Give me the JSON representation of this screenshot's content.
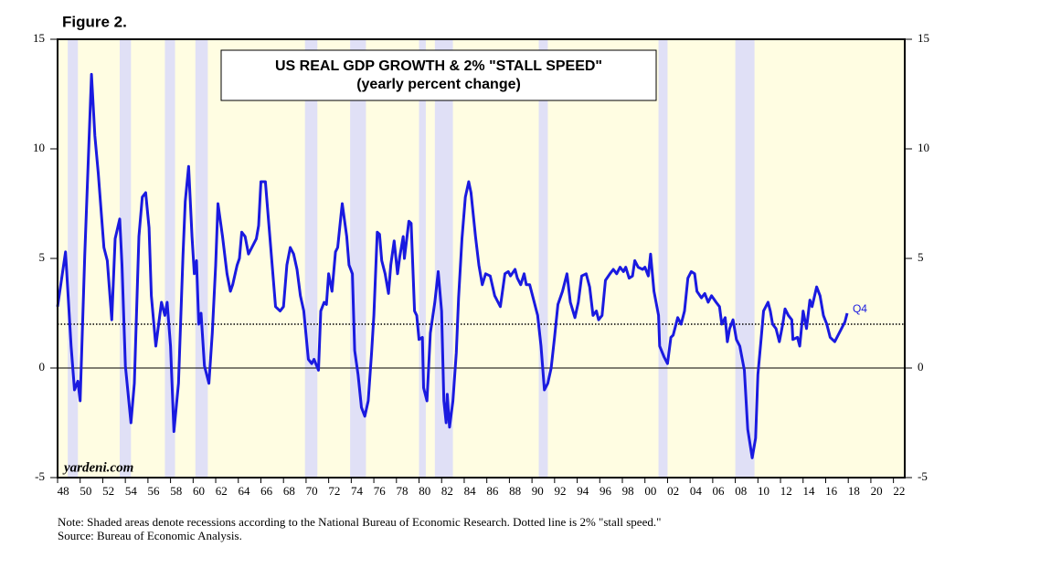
{
  "figure_label": "Figure 2.",
  "chart_data": {
    "type": "line",
    "title": "US REAL GDP GROWTH & 2% \"STALL SPEED\"",
    "subtitle": "(yearly percent change)",
    "watermark": "yardeni.com",
    "notes": [
      "Note: Shaded areas denote recessions according to the National Bureau of Economic Research. Dotted line is 2% \"stall speed.\"",
      "Source: Bureau of Economic Analysis."
    ],
    "end_label": "Q4",
    "color": "#1a1ae0",
    "stall_speed": 2,
    "recessions": [
      [
        1948.9,
        1949.8
      ],
      [
        1953.5,
        1954.5
      ],
      [
        1957.5,
        1958.4
      ],
      [
        1960.2,
        1961.3
      ],
      [
        1969.9,
        1971.0
      ],
      [
        1973.9,
        1975.3
      ],
      [
        1980.0,
        1980.6
      ],
      [
        1981.4,
        1983.0
      ],
      [
        1990.6,
        1991.4
      ],
      [
        2001.2,
        2002.0
      ],
      [
        2008.0,
        2009.7
      ]
    ],
    "xlim": [
      1948,
      2023
    ],
    "ylim": [
      -5,
      15
    ],
    "yticks": [
      -5,
      0,
      5,
      10,
      15
    ],
    "xticks": [
      {
        "value": 1948,
        "label": "48"
      },
      {
        "value": 1950,
        "label": "50"
      },
      {
        "value": 1952,
        "label": "52"
      },
      {
        "value": 1954,
        "label": "54"
      },
      {
        "value": 1956,
        "label": "56"
      },
      {
        "value": 1958,
        "label": "58"
      },
      {
        "value": 1960,
        "label": "60"
      },
      {
        "value": 1962,
        "label": "62"
      },
      {
        "value": 1964,
        "label": "64"
      },
      {
        "value": 1966,
        "label": "66"
      },
      {
        "value": 1968,
        "label": "68"
      },
      {
        "value": 1970,
        "label": "70"
      },
      {
        "value": 1972,
        "label": "72"
      },
      {
        "value": 1974,
        "label": "74"
      },
      {
        "value": 1976,
        "label": "76"
      },
      {
        "value": 1978,
        "label": "78"
      },
      {
        "value": 1980,
        "label": "80"
      },
      {
        "value": 1982,
        "label": "82"
      },
      {
        "value": 1984,
        "label": "84"
      },
      {
        "value": 1986,
        "label": "86"
      },
      {
        "value": 1988,
        "label": "88"
      },
      {
        "value": 1990,
        "label": "90"
      },
      {
        "value": 1992,
        "label": "92"
      },
      {
        "value": 1994,
        "label": "94"
      },
      {
        "value": 1996,
        "label": "96"
      },
      {
        "value": 1998,
        "label": "98"
      },
      {
        "value": 2000,
        "label": "00"
      },
      {
        "value": 2002,
        "label": "02"
      },
      {
        "value": 2004,
        "label": "04"
      },
      {
        "value": 2006,
        "label": "06"
      },
      {
        "value": 2008,
        "label": "08"
      },
      {
        "value": 2010,
        "label": "10"
      },
      {
        "value": 2012,
        "label": "12"
      },
      {
        "value": 2014,
        "label": "14"
      },
      {
        "value": 2016,
        "label": "16"
      },
      {
        "value": 2018,
        "label": "18"
      },
      {
        "value": 2020,
        "label": "20"
      },
      {
        "value": 2022,
        "label": "22"
      }
    ],
    "x": [
      1948.0,
      1948.7,
      1949.2,
      1949.5,
      1949.8,
      1950.0,
      1950.4,
      1951.0,
      1951.3,
      1951.6,
      1952.1,
      1952.4,
      1952.8,
      1953.1,
      1953.5,
      1953.7,
      1954.0,
      1954.5,
      1954.8,
      1955.2,
      1955.5,
      1955.8,
      1956.1,
      1956.3,
      1956.7,
      1957.2,
      1957.5,
      1957.7,
      1958.0,
      1958.3,
      1958.7,
      1959.1,
      1959.3,
      1959.6,
      1959.9,
      1960.1,
      1960.3,
      1960.5,
      1960.7,
      1961.0,
      1961.4,
      1961.7,
      1962.0,
      1962.2,
      1962.6,
      1963.0,
      1963.3,
      1963.5,
      1963.9,
      1964.1,
      1964.3,
      1964.6,
      1964.9,
      1965.2,
      1965.6,
      1965.8,
      1966.0,
      1966.4,
      1966.7,
      1967.0,
      1967.3,
      1967.7,
      1968.0,
      1968.3,
      1968.6,
      1968.9,
      1969.2,
      1969.5,
      1969.8,
      1970.2,
      1970.5,
      1970.7,
      1971.1,
      1971.3,
      1971.6,
      1971.8,
      1972.0,
      1972.3,
      1972.6,
      1972.8,
      1973.1,
      1973.2,
      1973.6,
      1973.8,
      1974.1,
      1974.3,
      1974.6,
      1974.9,
      1975.2,
      1975.5,
      1975.8,
      1976.0,
      1976.3,
      1976.5,
      1976.7,
      1977.0,
      1977.3,
      1977.5,
      1977.8,
      1978.1,
      1978.3,
      1978.6,
      1978.7,
      1979.1,
      1979.3,
      1979.6,
      1979.8,
      1980.0,
      1980.3,
      1980.4,
      1980.7,
      1981.0,
      1981.4,
      1981.7,
      1982.0,
      1982.2,
      1982.4,
      1982.5,
      1982.7,
      1983.0,
      1983.3,
      1983.5,
      1983.8,
      1984.1,
      1984.4,
      1984.6,
      1985.0,
      1985.3,
      1985.6,
      1985.9,
      1986.3,
      1986.7,
      1987.0,
      1987.2,
      1987.6,
      1987.9,
      1988.1,
      1988.5,
      1988.7,
      1989.0,
      1989.3,
      1989.5,
      1989.8,
      1990.2,
      1990.5,
      1990.8,
      1991.1,
      1991.4,
      1991.7,
      1992.0,
      1992.3,
      1992.7,
      1993.1,
      1993.4,
      1993.8,
      1994.1,
      1994.4,
      1994.8,
      1995.1,
      1995.4,
      1995.7,
      1995.9,
      1996.2,
      1996.5,
      1996.9,
      1997.2,
      1997.5,
      1997.8,
      1998.1,
      1998.3,
      1998.6,
      1998.9,
      1999.1,
      1999.4,
      1999.8,
      2000.0,
      2000.3,
      2000.5,
      2000.8,
      2001.2,
      2001.3,
      2001.7,
      2002.0,
      2002.3,
      2002.5,
      2002.9,
      2003.2,
      2003.5,
      2003.8,
      2004.1,
      2004.4,
      2004.6,
      2005.0,
      2005.3,
      2005.6,
      2005.9,
      2006.3,
      2006.6,
      2006.8,
      2007.1,
      2007.3,
      2007.5,
      2007.8,
      2008.1,
      2008.4,
      2008.8,
      2009.1,
      2009.5,
      2009.8,
      2010.0,
      2010.3,
      2010.5,
      2010.9,
      2011.1,
      2011.3,
      2011.6,
      2011.9,
      2012.2,
      2012.4,
      2012.7,
      2013.0,
      2013.1,
      2013.5,
      2013.7,
      2014.0,
      2014.3,
      2014.6,
      2014.8,
      2015.2,
      2015.5,
      2015.8,
      2016.1,
      2016.4,
      2016.8,
      2017.1,
      2017.4,
      2017.7,
      2017.9
    ],
    "values": [
      2.8,
      5.3,
      1.0,
      -1.0,
      -0.6,
      -1.5,
      5.1,
      13.4,
      10.6,
      8.9,
      5.5,
      4.9,
      2.2,
      5.9,
      6.8,
      4.7,
      0.1,
      -2.5,
      -0.7,
      6.0,
      7.8,
      8.0,
      6.4,
      3.3,
      1.0,
      3.0,
      2.4,
      3.0,
      1.0,
      -2.9,
      -0.7,
      5.1,
      7.6,
      9.2,
      6.0,
      4.3,
      4.9,
      2.0,
      2.5,
      0.1,
      -0.7,
      1.6,
      4.7,
      7.5,
      6.0,
      4.3,
      3.5,
      3.8,
      4.7,
      5.0,
      6.2,
      6.0,
      5.2,
      5.5,
      5.9,
      6.5,
      8.5,
      8.5,
      6.6,
      4.7,
      2.8,
      2.6,
      2.8,
      4.7,
      5.5,
      5.2,
      4.5,
      3.3,
      2.6,
      0.4,
      0.2,
      0.4,
      -0.1,
      2.6,
      3.0,
      2.9,
      4.3,
      3.5,
      5.3,
      5.5,
      7.0,
      7.5,
      6.0,
      4.7,
      4.3,
      0.8,
      -0.3,
      -1.8,
      -2.2,
      -1.5,
      0.7,
      2.4,
      6.2,
      6.1,
      4.9,
      4.3,
      3.4,
      4.7,
      5.8,
      4.3,
      5.1,
      6.0,
      5.0,
      6.7,
      6.6,
      2.6,
      2.4,
      1.3,
      1.4,
      -0.9,
      -1.5,
      1.6,
      3.0,
      4.4,
      2.6,
      -1.5,
      -2.5,
      -1.2,
      -2.7,
      -1.5,
      0.7,
      3.2,
      5.9,
      7.8,
      8.5,
      8.0,
      6.0,
      4.7,
      3.8,
      4.3,
      4.2,
      3.3,
      3.0,
      2.8,
      4.3,
      4.4,
      4.2,
      4.5,
      4.1,
      3.8,
      4.3,
      3.8,
      3.8,
      3.0,
      2.4,
      1.0,
      -1.0,
      -0.7,
      0.0,
      1.4,
      2.9,
      3.5,
      4.3,
      3.0,
      2.3,
      3.0,
      4.2,
      4.3,
      3.7,
      2.4,
      2.6,
      2.2,
      2.4,
      4.0,
      4.3,
      4.5,
      4.3,
      4.6,
      4.4,
      4.6,
      4.1,
      4.2,
      4.9,
      4.6,
      4.5,
      4.6,
      4.2,
      5.2,
      3.5,
      2.4,
      1.0,
      0.5,
      0.2,
      1.4,
      1.5,
      2.3,
      2.0,
      2.6,
      4.1,
      4.4,
      4.3,
      3.5,
      3.2,
      3.4,
      3.0,
      3.3,
      3.0,
      2.8,
      2.0,
      2.3,
      1.2,
      1.8,
      2.2,
      1.3,
      1.0,
      -0.1,
      -2.8,
      -4.1,
      -3.2,
      -0.3,
      1.4,
      2.6,
      3.0,
      2.6,
      2.0,
      1.8,
      1.2,
      2.0,
      2.7,
      2.4,
      2.2,
      1.3,
      1.4,
      1.0,
      2.6,
      1.8,
      3.1,
      2.8,
      3.7,
      3.3,
      2.4,
      2.0,
      1.4,
      1.2,
      1.5,
      1.8,
      2.1,
      2.5
    ]
  }
}
